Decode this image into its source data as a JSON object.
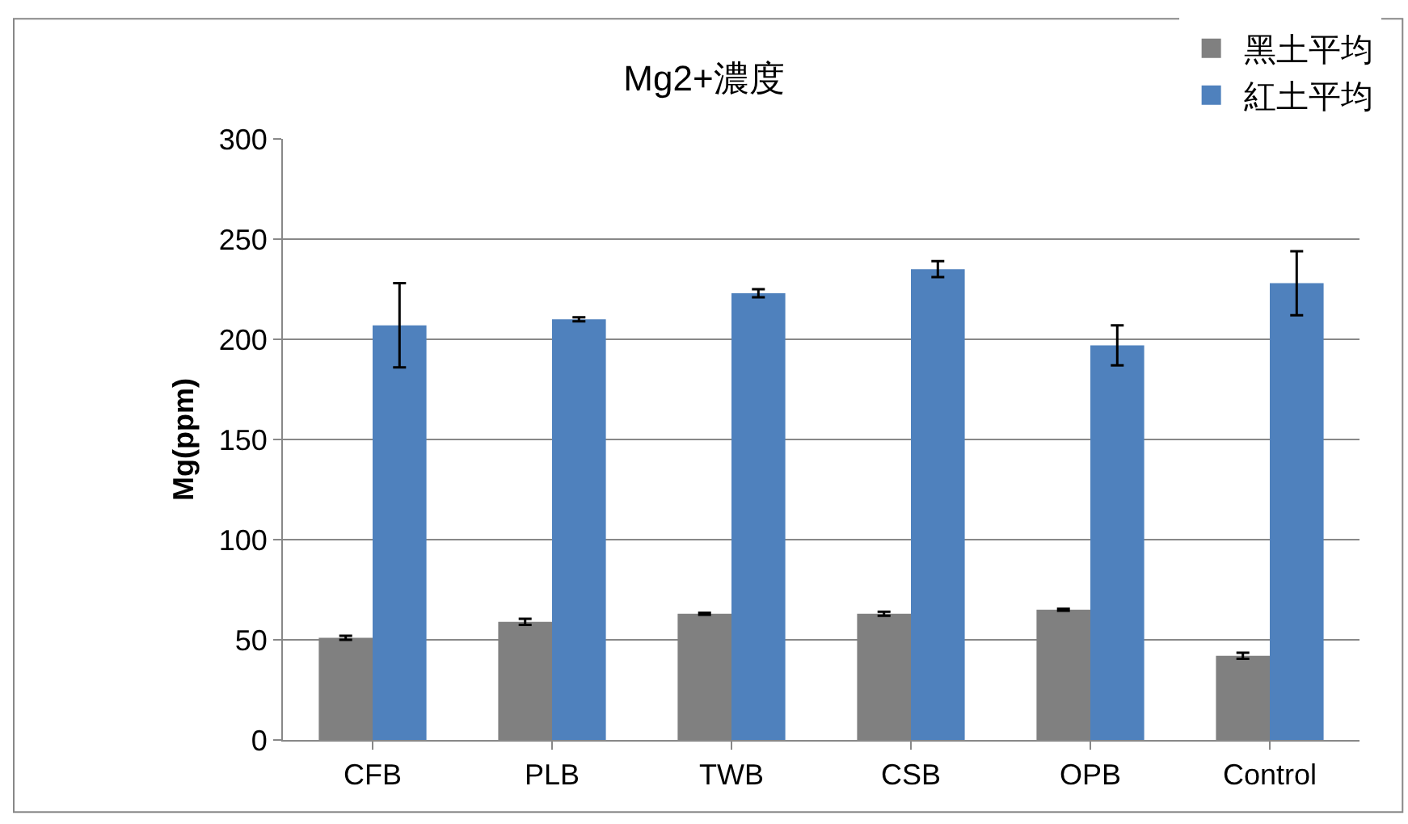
{
  "chart_data": {
    "type": "bar",
    "title": "Mg2+濃度",
    "ylabel": "Mg(ppm)",
    "categories": [
      "CFB",
      "PLB",
      "TWB",
      "CSB",
      "OPB",
      "Control"
    ],
    "series": [
      {
        "name": "黑土平均",
        "color": "#808080",
        "values": [
          51,
          59,
          63,
          63,
          65,
          42
        ],
        "errors": [
          1,
          1.5,
          0.5,
          1,
          0.5,
          1.5
        ]
      },
      {
        "name": "紅土平均",
        "color": "#4f81bd",
        "values": [
          207,
          210,
          223,
          235,
          197,
          228
        ],
        "errors": [
          21,
          1,
          2,
          4,
          10,
          16
        ]
      }
    ],
    "ylim": [
      0,
      300
    ],
    "yticks": [
      0,
      50,
      100,
      150,
      200,
      250,
      300
    ],
    "grid": "y",
    "legend": "top right"
  }
}
